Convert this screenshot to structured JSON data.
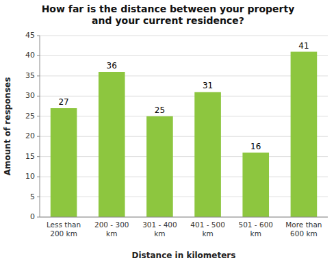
{
  "chart_data": {
    "type": "bar",
    "title": "How far is the distance between your property\nand your current residence?",
    "xlabel": "Distance in kilometers",
    "ylabel": "Amount of responses",
    "categories": [
      "Less than\n200 km",
      "200 - 300\nkm",
      "301 - 400\nkm",
      "401 - 500\nkm",
      "501 - 600\nkm",
      "More than\n600 km"
    ],
    "values": [
      27,
      36,
      25,
      31,
      16,
      41
    ],
    "color": "#8dc63f",
    "ylim": [
      0,
      45
    ],
    "yticks": [
      0,
      5,
      10,
      15,
      20,
      25,
      30,
      35,
      40,
      45
    ],
    "grid": true,
    "data_labels": true
  }
}
